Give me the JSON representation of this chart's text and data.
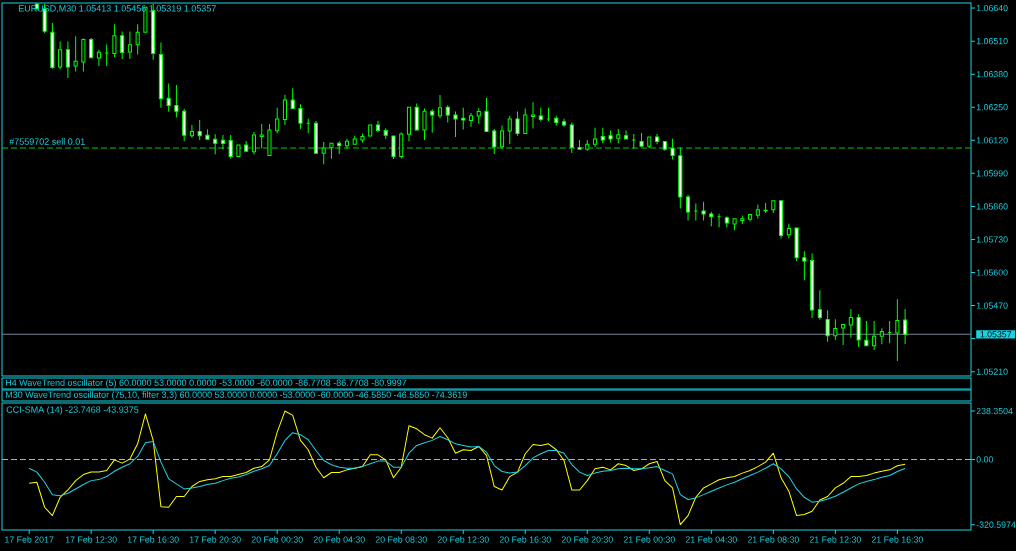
{
  "chart_data": [
    {
      "type": "candlestick",
      "title": "EURUSD,M30 1.05413 1.05456 1.05319 1.05357",
      "categories": [
        null,
        null,
        null,
        null,
        null,
        null,
        null,
        null,
        null,
        null,
        null,
        null,
        null,
        null,
        null,
        null,
        null,
        null,
        null,
        null,
        null,
        null,
        null,
        null,
        null,
        null,
        null,
        null,
        null,
        null,
        null,
        null,
        null,
        null,
        null,
        null,
        null,
        null,
        null,
        null,
        null,
        null,
        null,
        null,
        null,
        null,
        null,
        null,
        null,
        null,
        null,
        null,
        null,
        null,
        null,
        null,
        null,
        null,
        null,
        null,
        null,
        null,
        null,
        null,
        null,
        null,
        null,
        null,
        null,
        null,
        null,
        null,
        null,
        null,
        null,
        null,
        null,
        null,
        null,
        null,
        null,
        null,
        null,
        null,
        null,
        null,
        null,
        null,
        null,
        null,
        null,
        null,
        null,
        null,
        null,
        null,
        null,
        null,
        null,
        null,
        null,
        null,
        null,
        null,
        null,
        null,
        null,
        null,
        null,
        null,
        null,
        null,
        null,
        null,
        null,
        null,
        null,
        null,
        null,
        null,
        null,
        null,
        null,
        null,
        null
      ],
      "ohlc": [
        null,
        null,
        null,
        null,
        [
          1.06656,
          1.06656,
          1.0663,
          1.06637
        ],
        [
          1.06637,
          1.06657,
          1.06541,
          1.06549
        ],
        [
          1.06545,
          1.06581,
          1.06401,
          1.06406
        ],
        [
          1.06408,
          1.06509,
          1.06399,
          1.06476
        ],
        [
          1.06476,
          1.06509,
          1.06365,
          1.06408
        ],
        [
          1.06412,
          1.06529,
          1.06391,
          1.06431
        ],
        [
          1.06428,
          1.0652,
          1.06391,
          1.06516
        ],
        [
          1.06516,
          1.06522,
          1.06445,
          1.06445
        ],
        [
          1.06444,
          1.06476,
          1.06412,
          1.06466
        ],
        [
          1.06463,
          1.06497,
          1.06412,
          1.06463
        ],
        [
          1.06461,
          1.06576,
          1.06447,
          1.06531
        ],
        [
          1.06531,
          1.06548,
          1.0644,
          1.06465
        ],
        [
          1.06467,
          1.06548,
          1.0644,
          1.06496
        ],
        [
          1.06496,
          1.06576,
          1.06457,
          1.06545
        ],
        [
          1.06545,
          1.06643,
          1.06545,
          1.06643
        ],
        [
          1.0663,
          1.06657,
          1.06437,
          1.06461
        ],
        [
          1.06457,
          1.06505,
          1.06248,
          1.06283
        ],
        [
          1.06285,
          1.06343,
          1.06232,
          1.06257
        ],
        [
          1.06257,
          1.06337,
          1.0621,
          1.06234
        ],
        [
          1.06234,
          1.06244,
          1.06116,
          1.0614
        ],
        [
          1.06138,
          1.0618,
          1.0613,
          1.06155
        ],
        [
          1.06155,
          1.062,
          1.06121,
          1.06138
        ],
        [
          1.0614,
          1.06163,
          1.06124,
          1.06124
        ],
        [
          1.06124,
          1.06144,
          1.06065,
          1.06108
        ],
        [
          1.0612,
          1.06141,
          1.06085,
          1.06107
        ],
        [
          1.06119,
          1.06141,
          1.06048,
          1.06056
        ],
        [
          1.06056,
          1.06101,
          1.06056,
          1.06101
        ],
        [
          1.06101,
          1.06117,
          1.06077,
          1.06077
        ],
        [
          1.06075,
          1.06153,
          1.06064,
          1.06141
        ],
        [
          1.06135,
          1.06184,
          1.06089,
          1.06141
        ],
        [
          1.0606,
          1.06184,
          1.0606,
          1.0616
        ],
        [
          1.06158,
          1.06248,
          1.06148,
          1.06204
        ],
        [
          1.06202,
          1.06299,
          1.0618,
          1.06278
        ],
        [
          1.06278,
          1.06325,
          1.06245,
          1.06245
        ],
        [
          1.06245,
          1.06262,
          1.06163,
          1.06187
        ],
        [
          1.06187,
          1.06205,
          1.06148,
          1.06187
        ],
        [
          1.06187,
          1.06196,
          1.06069,
          1.06069
        ],
        [
          1.06069,
          1.06113,
          1.06026,
          1.0609
        ],
        [
          1.06091,
          1.06108,
          1.06047,
          1.06108
        ],
        [
          1.06108,
          1.06116,
          1.06066,
          1.06099
        ],
        [
          1.06099,
          1.06126,
          1.06087,
          1.06116
        ],
        [
          1.06104,
          1.06138,
          1.06104,
          1.06125
        ],
        [
          1.06121,
          1.06147,
          1.06111,
          1.06135
        ],
        [
          1.06137,
          1.0618,
          1.06137,
          1.0618
        ],
        [
          1.0618,
          1.06197,
          1.06152,
          1.06159
        ],
        [
          1.06159,
          1.06167,
          1.06125,
          1.0614
        ],
        [
          1.06137,
          1.06137,
          1.06046,
          1.06056
        ],
        [
          1.06056,
          1.06151,
          1.06048,
          1.06145
        ],
        [
          1.06144,
          1.0625,
          1.06116,
          1.0625
        ],
        [
          1.0625,
          1.06265,
          1.0616,
          1.0616
        ],
        [
          1.0616,
          1.06245,
          1.06121,
          1.06234
        ],
        [
          1.06234,
          1.06241,
          1.0615,
          1.06219
        ],
        [
          1.06217,
          1.06298,
          1.06207,
          1.06248
        ],
        [
          1.0625,
          1.06258,
          1.0619,
          1.06219
        ],
        [
          1.06219,
          1.06233,
          1.06133,
          1.06204
        ],
        [
          1.06207,
          1.06248,
          1.06162,
          1.062
        ],
        [
          1.06198,
          1.06227,
          1.06173,
          1.06217
        ],
        [
          1.06216,
          1.06246,
          1.06186,
          1.06233
        ],
        [
          1.06234,
          1.06286,
          1.06155,
          1.06155
        ],
        [
          1.06157,
          1.06164,
          1.06066,
          1.06094
        ],
        [
          1.06095,
          1.06178,
          1.06087,
          1.06157
        ],
        [
          1.06157,
          1.06217,
          1.06104,
          1.06204
        ],
        [
          1.06204,
          1.06233,
          1.06138,
          1.06147
        ],
        [
          1.06147,
          1.06245,
          1.06147,
          1.06219
        ],
        [
          1.06214,
          1.0627,
          1.06166,
          1.06219
        ],
        [
          1.06216,
          1.06248,
          1.06196,
          1.06202
        ],
        [
          1.06204,
          1.06248,
          1.06196,
          1.06204
        ],
        [
          1.06207,
          1.06217,
          1.06178,
          1.0619
        ],
        [
          1.06193,
          1.06205,
          1.06173,
          1.0618
        ],
        [
          1.0618,
          1.0619,
          1.0607,
          1.06092
        ],
        [
          1.06092,
          1.06121,
          1.06085,
          1.06085
        ],
        [
          1.06085,
          1.06121,
          1.06079,
          1.06104
        ],
        [
          1.06104,
          1.06169,
          1.06094,
          1.06125
        ],
        [
          1.06135,
          1.06169,
          1.06108,
          1.06121
        ],
        [
          1.06138,
          1.06159,
          1.06111,
          1.06125
        ],
        [
          1.06128,
          1.06164,
          1.06108,
          1.06142
        ],
        [
          1.06138,
          1.06159,
          1.06125,
          1.06125
        ],
        [
          1.06121,
          1.06145,
          1.06087,
          1.06121
        ],
        [
          1.06115,
          1.06149,
          1.06097,
          1.06097
        ],
        [
          1.06097,
          1.06133,
          1.0609,
          1.06133
        ],
        [
          1.06133,
          1.06145,
          1.06104,
          1.06115
        ],
        [
          1.06115,
          1.06115,
          1.06079,
          1.06085
        ],
        [
          1.06089,
          1.06126,
          1.06044,
          1.0606
        ],
        [
          1.06059,
          1.06092,
          1.05852,
          1.05897
        ],
        [
          1.05897,
          1.05906,
          1.05805,
          1.05838
        ],
        [
          1.05842,
          1.05871,
          1.05805,
          1.05842
        ],
        [
          1.05842,
          1.05878,
          1.05805,
          1.0583
        ],
        [
          1.0583,
          1.05839,
          1.05782,
          1.05819
        ],
        [
          1.05819,
          1.05831,
          1.05778,
          1.05819
        ],
        [
          1.05815,
          1.05821,
          1.05778,
          1.05795
        ],
        [
          1.05791,
          1.05811,
          1.05766,
          1.05811
        ],
        [
          1.05805,
          1.05824,
          1.05791,
          1.05811
        ],
        [
          1.05809,
          1.05828,
          1.05801,
          1.05828
        ],
        [
          1.05825,
          1.05867,
          1.05812,
          1.05847
        ],
        [
          1.05843,
          1.05873,
          1.05834,
          1.05845
        ],
        [
          1.05847,
          1.05882,
          1.05834,
          1.05882
        ],
        [
          1.05882,
          1.05882,
          1.05734,
          1.05746
        ],
        [
          1.05749,
          1.05792,
          1.05735,
          1.05773
        ],
        [
          1.05775,
          1.05775,
          1.05645,
          1.05658
        ],
        [
          1.05658,
          1.05684,
          1.0557,
          1.05645
        ],
        [
          1.05647,
          1.05675,
          1.05421,
          1.05453
        ],
        [
          1.05454,
          1.0553,
          1.05414,
          1.05423
        ],
        [
          1.05415,
          1.05452,
          1.05328,
          1.05351
        ],
        [
          1.05351,
          1.05416,
          1.05335,
          1.0538
        ],
        [
          1.05382,
          1.05396,
          1.05315,
          1.05396
        ],
        [
          1.05394,
          1.05456,
          1.05343,
          1.05423
        ],
        [
          1.05423,
          1.05436,
          1.05307,
          1.05335
        ],
        [
          1.05334,
          1.05409,
          1.05312,
          1.05312
        ],
        [
          1.05312,
          1.05409,
          1.05295,
          1.05349
        ],
        [
          1.05349,
          1.05381,
          1.05318,
          1.05368
        ],
        [
          1.05364,
          1.05409,
          1.05322,
          1.05364
        ],
        [
          1.05362,
          1.05495,
          1.05252,
          1.05411
        ],
        [
          1.05413,
          1.05456,
          1.05319,
          1.05357
        ],
        null,
        null,
        null,
        null,
        null,
        null,
        null,
        null
      ],
      "color": "#00ff00",
      "ylim": [
        1.05193,
        1.0666
      ],
      "yticks": [
        {
          "value": 1.0664,
          "label": "1.06640"
        },
        {
          "value": 1.0651,
          "label": "1.06510"
        },
        {
          "value": 1.0638,
          "label": "1.06380"
        },
        {
          "value": 1.0625,
          "label": "1.06250"
        },
        {
          "value": 1.0612,
          "label": "1.06120"
        },
        {
          "value": 1.0599,
          "label": "1.05990"
        },
        {
          "value": 1.0586,
          "label": "1.05860"
        },
        {
          "value": 1.0573,
          "label": "1.05730"
        },
        {
          "value": 1.056,
          "label": "1.05600"
        },
        {
          "value": 1.0547,
          "label": "1.05470"
        },
        {
          "value": 1.0534,
          "label": null
        },
        {
          "value": 1.0521,
          "label": "1.05210"
        }
      ],
      "tick_labels": "y",
      "ref_lines": [
        {
          "axis": "y",
          "value": 1.0609,
          "label": "#7559702 sell 0.01",
          "color": "#00c800",
          "line_style": "dashed"
        },
        {
          "axis": "y",
          "value": 1.05357,
          "label": "1.05357",
          "color": "#778899"
        }
      ]
    },
    {
      "type": "other",
      "title": "H4 WaveTrend oscillator (5) 60.0000 53.0000 0.0000 -53.0000 -60.0000 -86.7708 -86.7708 -80.9997"
    },
    {
      "type": "other",
      "title": "M30 WaveTrend oscillator (75,10, filter 3,3) 60.0000 53.0000 0.0000 -53.0000 -60.0000 -46.5850 -46.5850 -74.3619"
    },
    {
      "type": "line",
      "title": "CCI-SMA (14) -23.7468 -43.9375",
      "categories": [
        "17 Feb 2017",
        null,
        null,
        null,
        null,
        null,
        null,
        null,
        "17 Feb 12:30",
        null,
        null,
        null,
        null,
        null,
        null,
        null,
        "17 Feb 16:30",
        null,
        null,
        null,
        null,
        null,
        null,
        null,
        "17 Feb 20:30",
        null,
        null,
        null,
        null,
        null,
        null,
        null,
        "20 Feb 00:30",
        null,
        null,
        null,
        null,
        null,
        null,
        null,
        "20 Feb 04:30",
        null,
        null,
        null,
        null,
        null,
        null,
        null,
        "20 Feb 08:30",
        null,
        null,
        null,
        null,
        null,
        null,
        null,
        "20 Feb 12:30",
        null,
        null,
        null,
        null,
        null,
        null,
        null,
        "20 Feb 16:30",
        null,
        null,
        null,
        null,
        null,
        null,
        null,
        "20 Feb 20:30",
        null,
        null,
        null,
        null,
        null,
        null,
        null,
        "21 Feb 00:30",
        null,
        null,
        null,
        null,
        null,
        null,
        null,
        "21 Feb 04:30",
        null,
        null,
        null,
        null,
        null,
        null,
        null,
        "21 Feb 08:30",
        null,
        null,
        null,
        null,
        null,
        null,
        null,
        "21 Feb 12:30",
        null,
        null,
        null,
        null,
        null,
        null,
        null,
        "21 Feb 16:30",
        null
      ],
      "series": [
        {
          "color": "#ffff00",
          "values": [
            -117,
            -112,
            -235,
            -276,
            -186,
            -150,
            -104,
            -74,
            -62,
            -62,
            -54,
            -2,
            -18,
            2,
            77,
            225,
            94,
            -232,
            -235,
            -182,
            -182,
            -133,
            -108,
            -100,
            -95,
            -84,
            -84,
            -74,
            -64,
            -43,
            -35,
            -2,
            135,
            238.3504,
            217,
            94,
            48,
            -38,
            -90,
            -64,
            -64,
            -51,
            -43,
            -35,
            23,
            23,
            -2,
            -90,
            -38,
            166,
            151,
            122,
            105,
            156,
            107,
            31,
            48,
            44,
            64,
            20,
            -133,
            -150,
            -84,
            -62,
            28,
            74,
            69,
            77,
            48,
            -5,
            -150,
            -150,
            -104,
            -46,
            -38,
            -51,
            -21,
            -30,
            -54,
            -46,
            -21,
            -10,
            -104,
            -140,
            -320.5974,
            -276,
            -186,
            -140,
            -120,
            -100,
            -90,
            -84,
            -67,
            -54,
            -35,
            -13,
            31,
            -90,
            -156,
            -276,
            -271,
            -255,
            -199,
            -182,
            -140,
            -117,
            -84,
            -84,
            -79,
            -67,
            -58,
            -51,
            -31,
            -23.7468
          ]
        },
        {
          "color": "#22d3e6",
          "values": [
            -43,
            -62,
            -112,
            -174,
            -178,
            -166,
            -145,
            -123,
            -104,
            -99,
            -84,
            -58,
            -38,
            -21,
            15,
            82,
            89,
            -13,
            -95,
            -120,
            -145,
            -140,
            -133,
            -123,
            -117,
            -104,
            -92,
            -86,
            -74,
            -58,
            -46,
            -30,
            28,
            94,
            132,
            122,
            97,
            44,
            -5,
            -26,
            -38,
            -43,
            -43,
            -35,
            -21,
            -8,
            -8,
            -38,
            -38,
            31,
            69,
            82,
            94,
            113,
            97,
            77,
            69,
            61,
            64,
            36,
            -30,
            -59,
            -67,
            -62,
            -30,
            8,
            28,
            44,
            44,
            31,
            -25,
            -62,
            -79,
            -67,
            -58,
            -54,
            -46,
            -43,
            -46,
            -46,
            -41,
            -35,
            -54,
            -71,
            -173,
            -197,
            -189,
            -173,
            -156,
            -140,
            -125,
            -112,
            -95,
            -79,
            -62,
            -43,
            -21,
            -46,
            -84,
            -145,
            -186,
            -210,
            -205,
            -194,
            -181,
            -161,
            -140,
            -120,
            -108,
            -99,
            -87,
            -79,
            -59,
            -43.9375
          ]
        }
      ],
      "ylim": [
        -347,
        278
      ],
      "yticks": [
        238.3504,
        {
          "value": 0,
          "label": "0.00"
        },
        -320.5974
      ],
      "ref_lines": [
        {
          "axis": "y",
          "value": 0,
          "color": "#ee82ee",
          "line_style": "dashed"
        }
      ]
    }
  ]
}
